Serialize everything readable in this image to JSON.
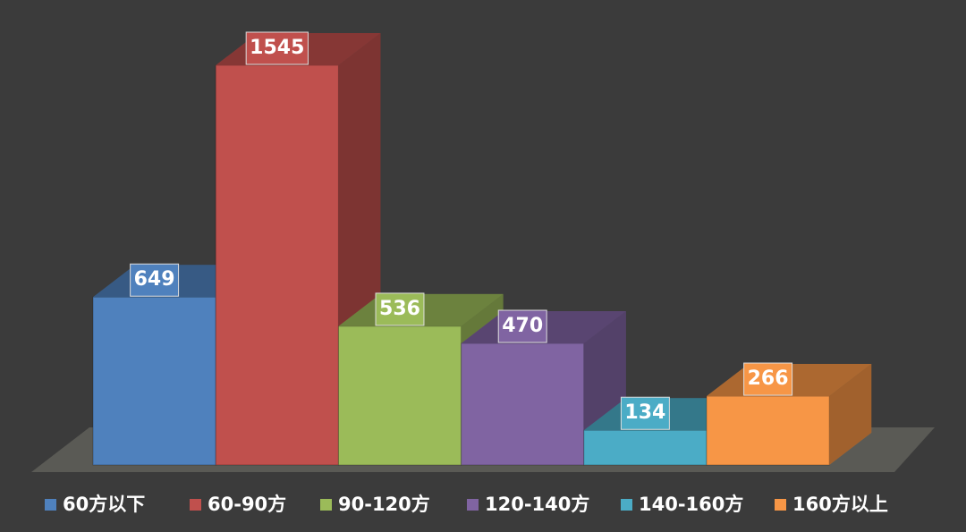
{
  "chart_data": {
    "type": "bar3d",
    "series": [
      {
        "name": "60方以下",
        "color": "#4f81bd",
        "values": [
          649
        ]
      },
      {
        "name": "60-90方",
        "color": "#c0504d",
        "values": [
          1545
        ]
      },
      {
        "name": "90-120方",
        "color": "#9bbb59",
        "values": [
          536
        ]
      },
      {
        "name": "120-140方",
        "color": "#8064a2",
        "values": [
          470
        ]
      },
      {
        "name": "140-160方",
        "color": "#4bacc6",
        "values": [
          134
        ]
      },
      {
        "name": "160方以上",
        "color": "#f79646",
        "values": [
          266
        ]
      }
    ]
  }
}
